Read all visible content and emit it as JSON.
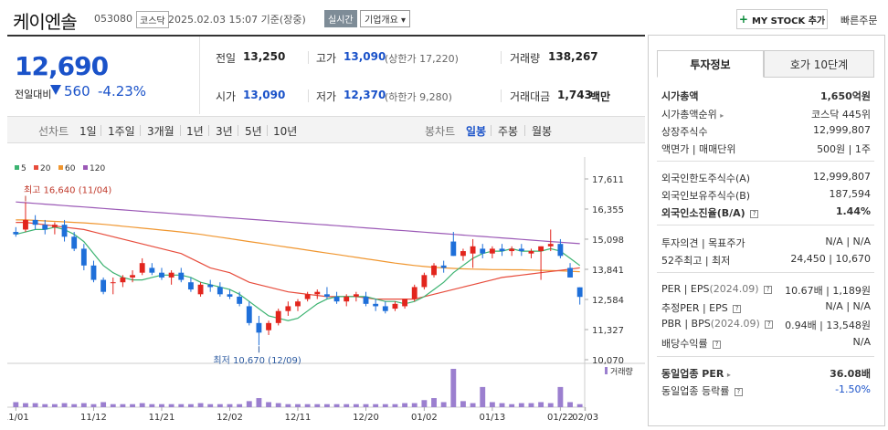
{
  "header": {
    "name": "케이엔솔",
    "code": "053080",
    "market": "코스닥",
    "datetime": "2025.02.03 15:07 기준(장중)",
    "live": "실시간",
    "overview": "기업개요",
    "my_stock": "MY STOCK 추가",
    "quick_order": "빠른주문"
  },
  "price": {
    "current": "12,690",
    "change_label": "전일대비",
    "change": "560",
    "rate": "-4.23%"
  },
  "quote": {
    "prev_label": "전일",
    "prev": "13,250",
    "high_label": "고가",
    "high": "13,090",
    "upper_limit": "(상한가 17,220)",
    "volume_label": "거래량",
    "volume": "138,267",
    "open_label": "시가",
    "open": "13,090",
    "low_label": "저가",
    "low": "12,370",
    "lower_limit": "(하한가 9,280)",
    "amount_label": "거래대금",
    "amount": "1,743",
    "amount_unit": "백만"
  },
  "periods": {
    "line_label": "선차트",
    "line_items": [
      "1일",
      "1주일",
      "3개월",
      "1년",
      "3년",
      "5년",
      "10년"
    ],
    "candle_label": "봉차트",
    "candle_items": [
      "일봉",
      "주봉",
      "월봉"
    ],
    "active": "일봉"
  },
  "chart_data": {
    "type": "candlestick",
    "legend": [
      "5",
      "20",
      "60",
      "120"
    ],
    "colors": {
      "ma5": "#3cb371",
      "ma20": "#e74c3c",
      "ma60": "#f0962f",
      "ma120": "#9b59b6",
      "up": "#e2251d",
      "down": "#1e6fd9",
      "volume": "#9b7fcf"
    },
    "y_ticks": [
      "17,611",
      "16,355",
      "15,098",
      "13,841",
      "12,584",
      "11,327",
      "10,070"
    ],
    "ylim": [
      10070,
      17611
    ],
    "x_ticks": [
      "11/01",
      "11/12",
      "11/21",
      "12/02",
      "12/11",
      "12/20",
      "01/02",
      "01/13",
      "01/22",
      "02/03"
    ],
    "high_annotation": "최고 16,640 (11/04)",
    "low_annotation": "최저 10,670 (12/09)",
    "volume_label": "거래량",
    "candles": [
      [
        15400,
        15600,
        15200,
        15300
      ],
      [
        15500,
        16640,
        15400,
        15900
      ],
      [
        15900,
        16100,
        15500,
        15700
      ],
      [
        15700,
        15900,
        15300,
        15500
      ],
      [
        15600,
        15800,
        15300,
        15700
      ],
      [
        15700,
        15900,
        15000,
        15200
      ],
      [
        15200,
        15400,
        14600,
        14700
      ],
      [
        14700,
        14900,
        13800,
        14000
      ],
      [
        14000,
        14200,
        13300,
        13400
      ],
      [
        13400,
        13500,
        12800,
        12900
      ],
      [
        13300,
        13500,
        12800,
        13300
      ],
      [
        13300,
        13600,
        13100,
        13500
      ],
      [
        13500,
        13800,
        13300,
        13600
      ],
      [
        13700,
        14300,
        13600,
        14100
      ],
      [
        13900,
        14100,
        13600,
        13700
      ],
      [
        13700,
        13900,
        13400,
        13500
      ],
      [
        13500,
        13800,
        13200,
        13700
      ],
      [
        13700,
        13900,
        13300,
        13400
      ],
      [
        13300,
        13500,
        12900,
        13000
      ],
      [
        12800,
        13300,
        12700,
        13200
      ],
      [
        13200,
        13400,
        12900,
        13100
      ],
      [
        13100,
        13300,
        12700,
        12800
      ],
      [
        12800,
        13000,
        12600,
        12700
      ],
      [
        12700,
        12900,
        12300,
        12400
      ],
      [
        12300,
        12500,
        11500,
        11600
      ],
      [
        11600,
        11900,
        10670,
        11200
      ],
      [
        11300,
        11700,
        11100,
        11600
      ],
      [
        11600,
        12200,
        11500,
        12100
      ],
      [
        12100,
        12500,
        11900,
        12300
      ],
      [
        12300,
        12600,
        12100,
        12500
      ],
      [
        12600,
        12900,
        12500,
        12800
      ],
      [
        12800,
        13000,
        12600,
        12900
      ],
      [
        12800,
        13100,
        12600,
        12700
      ],
      [
        12700,
        12900,
        12400,
        12500
      ],
      [
        12500,
        12800,
        12300,
        12700
      ],
      [
        12700,
        12900,
        12500,
        12800
      ],
      [
        12700,
        12900,
        12300,
        12400
      ],
      [
        12400,
        12600,
        12100,
        12300
      ],
      [
        12300,
        12500,
        12000,
        12100
      ],
      [
        12200,
        12500,
        12100,
        12400
      ],
      [
        12300,
        12600,
        12200,
        12600
      ],
      [
        12600,
        13200,
        12500,
        13100
      ],
      [
        13100,
        13700,
        13000,
        13600
      ],
      [
        13600,
        14100,
        13500,
        14000
      ],
      [
        14000,
        14200,
        13700,
        13900
      ],
      [
        15000,
        15400,
        14400,
        14400
      ],
      [
        14400,
        14700,
        14200,
        14600
      ],
      [
        14500,
        15100,
        13900,
        14800
      ],
      [
        14700,
        14900,
        14300,
        14500
      ],
      [
        14500,
        14800,
        14300,
        14700
      ],
      [
        14700,
        14900,
        14400,
        14600
      ],
      [
        14600,
        14800,
        14400,
        14700
      ],
      [
        14700,
        14900,
        14400,
        14600
      ],
      [
        14500,
        14700,
        14300,
        14600
      ],
      [
        14600,
        14800,
        13400,
        14800
      ],
      [
        14800,
        15500,
        14600,
        14900
      ],
      [
        14900,
        15100,
        14300,
        14400
      ],
      [
        13900,
        14100,
        13500,
        13500
      ],
      [
        13090,
        13090,
        12370,
        12690
      ]
    ],
    "volumes": [
      5,
      4,
      4,
      3,
      3,
      4,
      3,
      4,
      3,
      5,
      3,
      3,
      3,
      4,
      3,
      3,
      3,
      3,
      3,
      4,
      3,
      3,
      3,
      3,
      6,
      9,
      5,
      4,
      3,
      3,
      3,
      3,
      3,
      3,
      3,
      3,
      3,
      3,
      3,
      3,
      4,
      4,
      7,
      9,
      5,
      38,
      6,
      4,
      20,
      5,
      4,
      3,
      4,
      4,
      5,
      4,
      20,
      5,
      3
    ],
    "ma5": [
      15300,
      15400,
      15500,
      15500,
      15600,
      15500,
      15300,
      15000,
      14500,
      14000,
      13700,
      13500,
      13400,
      13400,
      13500,
      13600,
      13600,
      13600,
      13500,
      13300,
      13200,
      13100,
      13000,
      12800,
      12500,
      12200,
      11900,
      11800,
      11700,
      11800,
      12100,
      12400,
      12600,
      12700,
      12700,
      12700,
      12700,
      12600,
      12500,
      12500,
      12400,
      12500,
      12700,
      13000,
      13300,
      13700,
      14000,
      14300,
      14500,
      14600,
      14600,
      14700,
      14600,
      14600,
      14600,
      14700,
      14600,
      14300,
      14000
    ],
    "ma20": [
      15800,
      15800,
      15750,
      15700,
      15650,
      15600,
      15550,
      15500,
      15400,
      15300,
      15200,
      15100,
      15000,
      14900,
      14800,
      14700,
      14600,
      14500,
      14300,
      14100,
      13900,
      13800,
      13700,
      13500,
      13300,
      13200,
      13100,
      13000,
      12900,
      12850,
      12800,
      12750,
      12700,
      12700,
      12700,
      12700,
      12650,
      12600,
      12600,
      12600,
      12600,
      12600,
      12700,
      12800,
      12900,
      13000,
      13100,
      13200,
      13300,
      13400,
      13500,
      13550,
      13600,
      13650,
      13700,
      13750,
      13800,
      13850,
      13900
    ],
    "ma60": [
      15900,
      15900,
      15880,
      15860,
      15840,
      15820,
      15800,
      15780,
      15750,
      15720,
      15680,
      15640,
      15600,
      15560,
      15520,
      15480,
      15440,
      15400,
      15350,
      15300,
      15240,
      15180,
      15120,
      15060,
      15000,
      14940,
      14880,
      14820,
      14760,
      14700,
      14640,
      14580,
      14520,
      14460,
      14400,
      14340,
      14280,
      14220,
      14160,
      14100,
      14050,
      14000,
      13960,
      13920,
      13900,
      13880,
      13860,
      13850,
      13840,
      13830,
      13830,
      13820,
      13820,
      13810,
      13800,
      13790,
      13780,
      13760,
      13740
    ],
    "ma120": [
      16650,
      16620,
      16590,
      16560,
      16530,
      16500,
      16470,
      16440,
      16410,
      16380,
      16350,
      16320,
      16290,
      16260,
      16230,
      16200,
      16170,
      16140,
      16110,
      16080,
      16050,
      16020,
      15990,
      15960,
      15930,
      15900,
      15870,
      15840,
      15810,
      15780,
      15750,
      15720,
      15690,
      15660,
      15630,
      15600,
      15570,
      15540,
      15510,
      15480,
      15450,
      15420,
      15390,
      15360,
      15330,
      15300,
      15270,
      15240,
      15210,
      15180,
      15150,
      15120,
      15090,
      15060,
      15030,
      15000,
      14970,
      14940,
      14910
    ]
  },
  "invest_panel": {
    "tab_invest": "투자정보",
    "tab_quote": "호가 10단계",
    "market_cap_label": "시가총액",
    "market_cap": "1,650억원",
    "market_cap_rank_label": "시가총액순위",
    "market_cap_rank": "코스닥 445위",
    "shares_label": "상장주식수",
    "shares": "12,999,807",
    "par_label": "액면가 | 매매단위",
    "par": "500원 | 1주",
    "foreign_limit_label": "외국인한도주식수(A)",
    "foreign_limit": "12,999,807",
    "foreign_hold_label": "외국인보유주식수(B)",
    "foreign_hold": "187,594",
    "foreign_rate_label": "외국인소진율(B/A)",
    "foreign_rate": "1.44%",
    "opinion_label": "투자의견 | 목표주가",
    "opinion": "N/A | N/A",
    "week52_label": "52주최고 | 최저",
    "week52": "24,450 | 10,670",
    "per_label": "PER | EPS",
    "per_date": "(2024.09)",
    "per": "10.67배 | 1,189원",
    "est_per_label": "추정PER | EPS",
    "est_per": "N/A | N/A",
    "pbr_label": "PBR | BPS",
    "pbr_date": "(2024.09)",
    "pbr": "0.94배 | 13,548원",
    "dividend_label": "배당수익률",
    "dividend": "N/A",
    "sector_per_label": "동일업종 PER",
    "sector_per": "36.08배",
    "sector_rate_label": "동일업종 등락률",
    "sector_rate": "-1.50%"
  }
}
